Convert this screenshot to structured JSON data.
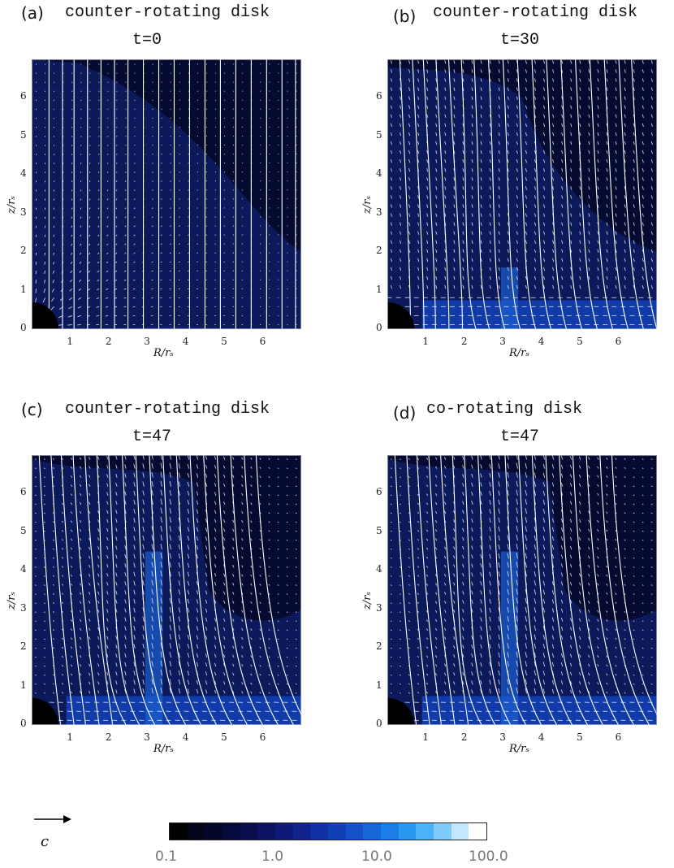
{
  "panels": [
    {
      "label": "(a)",
      "title": "counter-rotating disk",
      "time": "t=0",
      "kind": "initial"
    },
    {
      "label": "(b)",
      "title": "counter-rotating disk",
      "time": "t=30",
      "kind": "early"
    },
    {
      "label": "(c)",
      "title": "counter-rotating disk",
      "time": "t=47",
      "kind": "counter"
    },
    {
      "label": "(d)",
      "title": "co-rotating disk",
      "time": "t=47",
      "kind": "co"
    }
  ],
  "axes": {
    "xlabel": "R/r_s",
    "xlabel_display": "R/rₛ",
    "ylabel_display": "z/rₛ",
    "xticks": [
      "1",
      "2",
      "3",
      "4",
      "5",
      "6"
    ],
    "yticks": [
      "0",
      "1",
      "2",
      "3",
      "4",
      "5",
      "6"
    ],
    "range": [
      0,
      7
    ]
  },
  "colorbar": {
    "ticks": [
      "0.1",
      "1.0",
      "10.0",
      "100.0"
    ],
    "scale": "log",
    "colors": [
      "#000000",
      "#03031a",
      "#05062b",
      "#070a3c",
      "#0a0e4f",
      "#0c1362",
      "#0e1a78",
      "#10238d",
      "#1030a3",
      "#1140b6",
      "#1352c8",
      "#1666d8",
      "#1a7ee6",
      "#2a97f0",
      "#4cb1f6",
      "#80cbfa",
      "#c3e7fd",
      "#ffffff"
    ]
  },
  "vector_ref": {
    "label": "c"
  }
}
